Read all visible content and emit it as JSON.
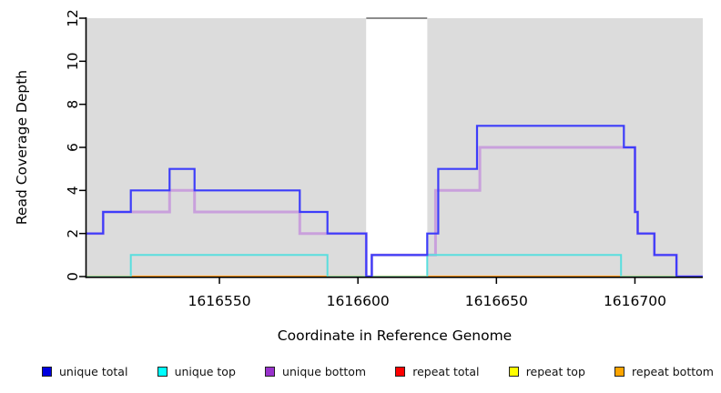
{
  "chart_data": {
    "type": "line",
    "subtype": "step",
    "title": "",
    "xlabel": "Coordinate in Reference Genome",
    "ylabel": "Read Coverage Depth",
    "xlim": [
      1616502,
      1616724.5
    ],
    "ylim": [
      0,
      12
    ],
    "x_ticks": [
      1616550,
      1616600,
      1616650,
      1616700
    ],
    "y_ticks": [
      0,
      2,
      4,
      6,
      8,
      10,
      12
    ],
    "grid": false,
    "legend_position": "bottom",
    "plot_background": "#dcdcdc",
    "page_background": "#ffffff",
    "gap_region": {
      "x_start": 1616603,
      "x_end": 1616625,
      "fill": "#ffffff",
      "top_line_color": "#8c8c8c"
    },
    "baseline_blend": {
      "color": "#95d6a1",
      "y": 0,
      "segments": [
        [
          1616502,
          1616518
        ],
        [
          1616589,
          1616625
        ],
        [
          1616695,
          1616724.5
        ]
      ]
    },
    "series": [
      {
        "name": "unique total",
        "color": "#3d3dfa",
        "legend_fill": "#0000e0",
        "width": 2.2,
        "steps": [
          [
            1616502,
            2
          ],
          [
            1616508,
            3
          ],
          [
            1616518,
            4
          ],
          [
            1616532,
            5
          ],
          [
            1616541,
            4
          ],
          [
            1616579,
            3
          ],
          [
            1616589,
            2
          ],
          [
            1616603,
            0
          ],
          [
            1616605,
            1
          ],
          [
            1616625,
            2
          ],
          [
            1616629,
            5
          ],
          [
            1616643,
            7
          ],
          [
            1616696,
            6
          ],
          [
            1616700,
            3
          ],
          [
            1616701,
            2
          ],
          [
            1616707,
            1
          ],
          [
            1616715,
            0
          ],
          [
            1616724.5,
            0
          ]
        ]
      },
      {
        "name": "unique top",
        "color": "#59dede",
        "legend_fill": "#00ffff",
        "width": 2,
        "steps": [
          [
            1616502,
            0
          ],
          [
            1616518,
            1
          ],
          [
            1616589,
            0
          ],
          [
            1616625,
            1
          ],
          [
            1616695,
            0
          ],
          [
            1616724.5,
            0
          ]
        ]
      },
      {
        "name": "unique bottom",
        "color": "#c9a0dc",
        "legend_fill": "#9932cc",
        "width": 3,
        "steps": [
          [
            1616502,
            2
          ],
          [
            1616508,
            3
          ],
          [
            1616532,
            4
          ],
          [
            1616541,
            3
          ],
          [
            1616579,
            2
          ],
          [
            1616603,
            0
          ],
          [
            1616605,
            1
          ],
          [
            1616628,
            4
          ],
          [
            1616644,
            6
          ],
          [
            1616700,
            3
          ],
          [
            1616701,
            2
          ],
          [
            1616707,
            1
          ],
          [
            1616715,
            0
          ],
          [
            1616724.5,
            0
          ]
        ]
      },
      {
        "name": "repeat total",
        "color": "#ff0000",
        "legend_fill": "#ff0000",
        "width": 1.5,
        "steps": [
          [
            1616502,
            0
          ],
          [
            1616724.5,
            0
          ]
        ]
      },
      {
        "name": "repeat top",
        "color": "#ffff00",
        "legend_fill": "#ffff00",
        "width": 1.5,
        "steps": [
          [
            1616502,
            0
          ],
          [
            1616724.5,
            0
          ]
        ]
      },
      {
        "name": "repeat bottom",
        "color": "#ff9d1e",
        "legend_fill": "#ffa500",
        "width": 2.2,
        "steps": [
          [
            1616502,
            0
          ],
          [
            1616724.5,
            0
          ]
        ]
      }
    ]
  }
}
